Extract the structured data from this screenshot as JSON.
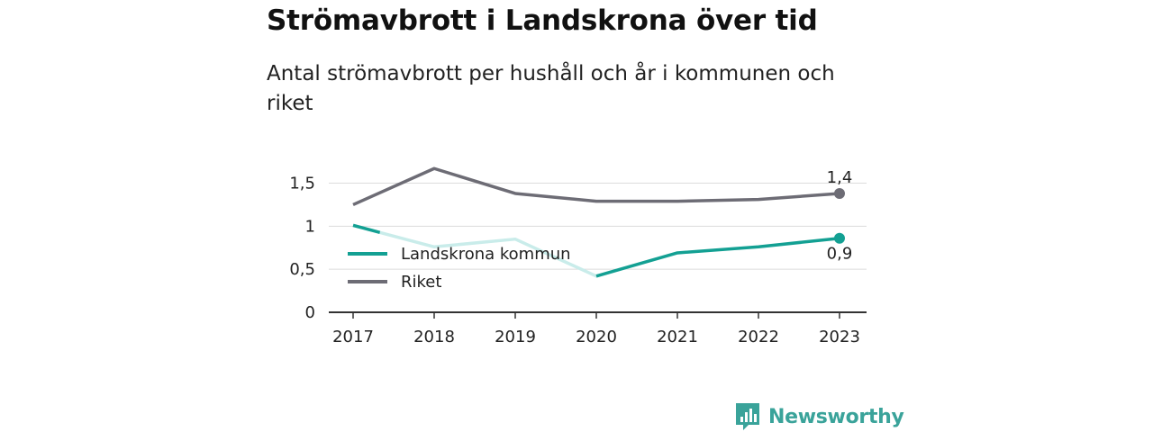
{
  "title": "Strömavbrott i Landskrona över tid",
  "subtitle": "Antal strömavbrott per hushåll och år i kommunen och riket",
  "brand": {
    "name": "Newsworthy",
    "logo_icon": "newsworthy-logo-icon",
    "color": "#3aa39a"
  },
  "chart_data": {
    "type": "line",
    "x": [
      "2017",
      "2018",
      "2019",
      "2020",
      "2021",
      "2022",
      "2023"
    ],
    "y_ticks": [
      "0",
      "0,5",
      "1",
      "1,5"
    ],
    "ylim": [
      0,
      1.5
    ],
    "grid": true,
    "legend_position": "left-middle",
    "series": [
      {
        "name": "Landskrona kommun",
        "color": "#13a093",
        "faded_color": "#c9ecea",
        "values": [
          1.01,
          0.76,
          0.85,
          0.42,
          0.69,
          0.76,
          0.86
        ],
        "end_label": "0,9"
      },
      {
        "name": "Riket",
        "color": "#6d6c75",
        "values": [
          1.25,
          1.67,
          1.38,
          1.29,
          1.29,
          1.31,
          1.38
        ],
        "end_label": "1,4"
      }
    ]
  }
}
